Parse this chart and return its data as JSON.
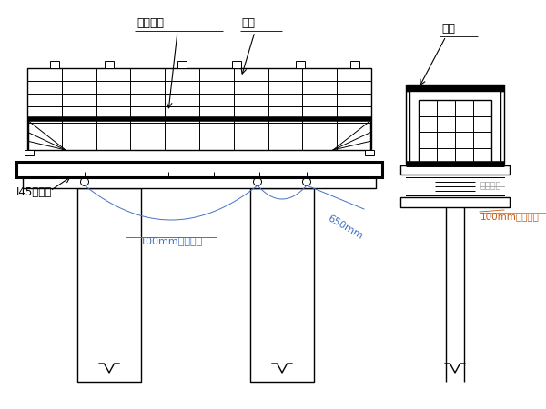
{
  "bg_color": "#ffffff",
  "line_color": "#000000",
  "label_color_blue": "#4472c4",
  "label_color_orange": "#c55a11",
  "label_color_gray": "#a0a0a0",
  "labels": {
    "xinggang_beifang": "型鉢背栲",
    "gangmo": "鉢模",
    "lagan": "拉杆",
    "I45_beam": "I45承重梁",
    "round_steel_100mm_1": "100mm圆鉢扁担",
    "round_steel_100mm_2": "100mm圆鉢扁担",
    "dim_650mm": "650mm",
    "duiwei_luoshuang": "对位螺栓"
  }
}
